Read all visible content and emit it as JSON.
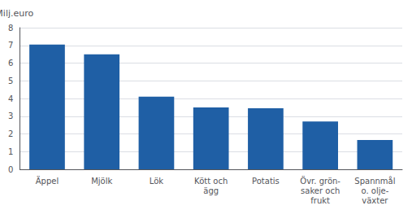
{
  "chart_data": {
    "type": "bar",
    "ylabel": "Milj.euro",
    "categories": [
      "Äppel",
      "Mjölk",
      "Lök",
      "Kött och\nägg",
      "Potatis",
      "Övr. grön-\nsaker och\nfrukt",
      "Spannmål\no. olje-\nväxter"
    ],
    "values": [
      7.05,
      6.5,
      4.1,
      3.5,
      3.45,
      2.7,
      1.65
    ],
    "color": "#1F5FA5",
    "ylim": [
      0,
      8
    ],
    "yticks": [
      0,
      1,
      2,
      3,
      4,
      5,
      6,
      7,
      8
    ],
    "grid": true
  }
}
